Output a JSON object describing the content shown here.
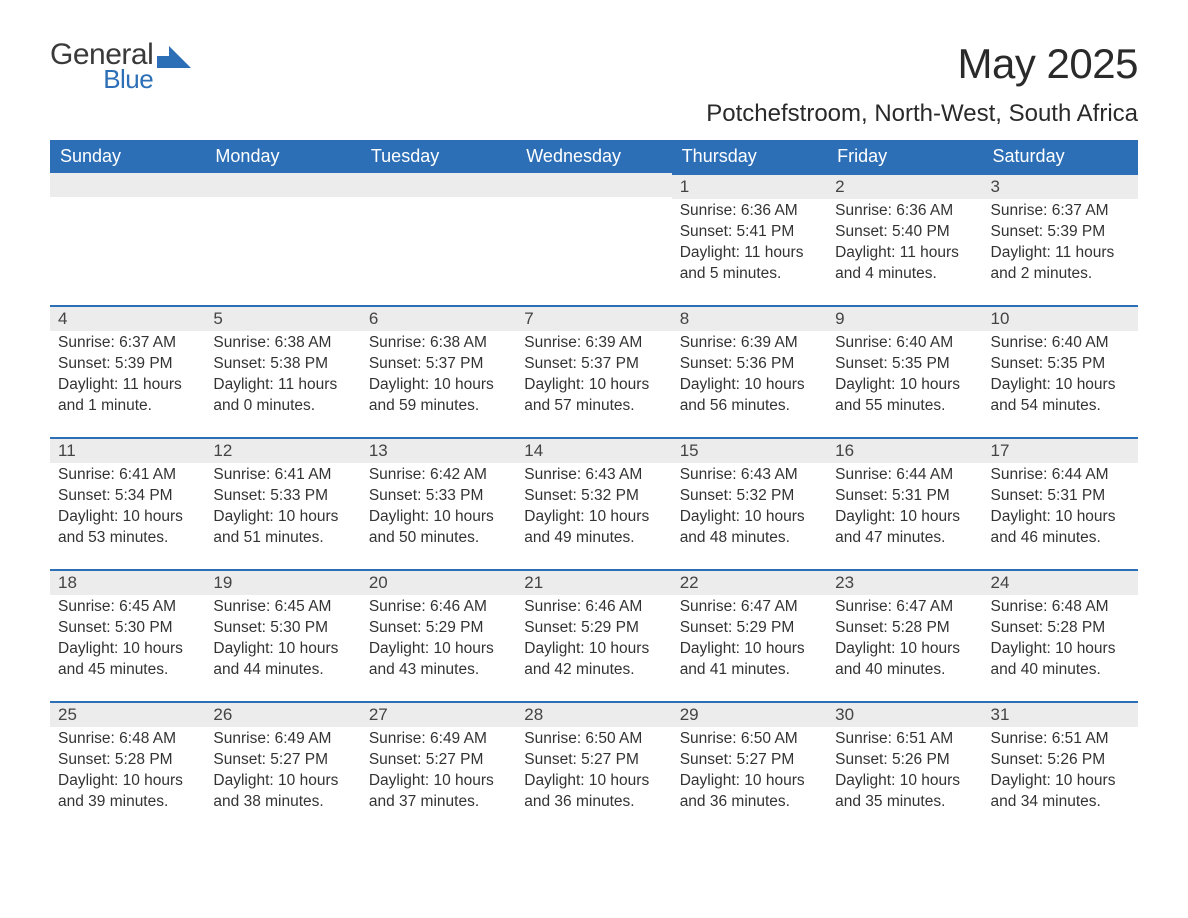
{
  "brand": {
    "word1": "General",
    "word2": "Blue",
    "icon_color": "#2d6fb7"
  },
  "header": {
    "month_title": "May 2025",
    "location": "Potchefstroom, North-West, South Africa"
  },
  "colors": {
    "header_bg": "#2d6fb7",
    "header_text": "#ffffff",
    "daybar_bg": "#ececec",
    "body_text": "#333333",
    "page_bg": "#ffffff"
  },
  "weekdays": [
    "Sunday",
    "Monday",
    "Tuesday",
    "Wednesday",
    "Thursday",
    "Friday",
    "Saturday"
  ],
  "weeks": [
    [
      null,
      null,
      null,
      null,
      {
        "num": "1",
        "sunrise": "Sunrise: 6:36 AM",
        "sunset": "Sunset: 5:41 PM",
        "daylight": "Daylight: 11 hours and 5 minutes."
      },
      {
        "num": "2",
        "sunrise": "Sunrise: 6:36 AM",
        "sunset": "Sunset: 5:40 PM",
        "daylight": "Daylight: 11 hours and 4 minutes."
      },
      {
        "num": "3",
        "sunrise": "Sunrise: 6:37 AM",
        "sunset": "Sunset: 5:39 PM",
        "daylight": "Daylight: 11 hours and 2 minutes."
      }
    ],
    [
      {
        "num": "4",
        "sunrise": "Sunrise: 6:37 AM",
        "sunset": "Sunset: 5:39 PM",
        "daylight": "Daylight: 11 hours and 1 minute."
      },
      {
        "num": "5",
        "sunrise": "Sunrise: 6:38 AM",
        "sunset": "Sunset: 5:38 PM",
        "daylight": "Daylight: 11 hours and 0 minutes."
      },
      {
        "num": "6",
        "sunrise": "Sunrise: 6:38 AM",
        "sunset": "Sunset: 5:37 PM",
        "daylight": "Daylight: 10 hours and 59 minutes."
      },
      {
        "num": "7",
        "sunrise": "Sunrise: 6:39 AM",
        "sunset": "Sunset: 5:37 PM",
        "daylight": "Daylight: 10 hours and 57 minutes."
      },
      {
        "num": "8",
        "sunrise": "Sunrise: 6:39 AM",
        "sunset": "Sunset: 5:36 PM",
        "daylight": "Daylight: 10 hours and 56 minutes."
      },
      {
        "num": "9",
        "sunrise": "Sunrise: 6:40 AM",
        "sunset": "Sunset: 5:35 PM",
        "daylight": "Daylight: 10 hours and 55 minutes."
      },
      {
        "num": "10",
        "sunrise": "Sunrise: 6:40 AM",
        "sunset": "Sunset: 5:35 PM",
        "daylight": "Daylight: 10 hours and 54 minutes."
      }
    ],
    [
      {
        "num": "11",
        "sunrise": "Sunrise: 6:41 AM",
        "sunset": "Sunset: 5:34 PM",
        "daylight": "Daylight: 10 hours and 53 minutes."
      },
      {
        "num": "12",
        "sunrise": "Sunrise: 6:41 AM",
        "sunset": "Sunset: 5:33 PM",
        "daylight": "Daylight: 10 hours and 51 minutes."
      },
      {
        "num": "13",
        "sunrise": "Sunrise: 6:42 AM",
        "sunset": "Sunset: 5:33 PM",
        "daylight": "Daylight: 10 hours and 50 minutes."
      },
      {
        "num": "14",
        "sunrise": "Sunrise: 6:43 AM",
        "sunset": "Sunset: 5:32 PM",
        "daylight": "Daylight: 10 hours and 49 minutes."
      },
      {
        "num": "15",
        "sunrise": "Sunrise: 6:43 AM",
        "sunset": "Sunset: 5:32 PM",
        "daylight": "Daylight: 10 hours and 48 minutes."
      },
      {
        "num": "16",
        "sunrise": "Sunrise: 6:44 AM",
        "sunset": "Sunset: 5:31 PM",
        "daylight": "Daylight: 10 hours and 47 minutes."
      },
      {
        "num": "17",
        "sunrise": "Sunrise: 6:44 AM",
        "sunset": "Sunset: 5:31 PM",
        "daylight": "Daylight: 10 hours and 46 minutes."
      }
    ],
    [
      {
        "num": "18",
        "sunrise": "Sunrise: 6:45 AM",
        "sunset": "Sunset: 5:30 PM",
        "daylight": "Daylight: 10 hours and 45 minutes."
      },
      {
        "num": "19",
        "sunrise": "Sunrise: 6:45 AM",
        "sunset": "Sunset: 5:30 PM",
        "daylight": "Daylight: 10 hours and 44 minutes."
      },
      {
        "num": "20",
        "sunrise": "Sunrise: 6:46 AM",
        "sunset": "Sunset: 5:29 PM",
        "daylight": "Daylight: 10 hours and 43 minutes."
      },
      {
        "num": "21",
        "sunrise": "Sunrise: 6:46 AM",
        "sunset": "Sunset: 5:29 PM",
        "daylight": "Daylight: 10 hours and 42 minutes."
      },
      {
        "num": "22",
        "sunrise": "Sunrise: 6:47 AM",
        "sunset": "Sunset: 5:29 PM",
        "daylight": "Daylight: 10 hours and 41 minutes."
      },
      {
        "num": "23",
        "sunrise": "Sunrise: 6:47 AM",
        "sunset": "Sunset: 5:28 PM",
        "daylight": "Daylight: 10 hours and 40 minutes."
      },
      {
        "num": "24",
        "sunrise": "Sunrise: 6:48 AM",
        "sunset": "Sunset: 5:28 PM",
        "daylight": "Daylight: 10 hours and 40 minutes."
      }
    ],
    [
      {
        "num": "25",
        "sunrise": "Sunrise: 6:48 AM",
        "sunset": "Sunset: 5:28 PM",
        "daylight": "Daylight: 10 hours and 39 minutes."
      },
      {
        "num": "26",
        "sunrise": "Sunrise: 6:49 AM",
        "sunset": "Sunset: 5:27 PM",
        "daylight": "Daylight: 10 hours and 38 minutes."
      },
      {
        "num": "27",
        "sunrise": "Sunrise: 6:49 AM",
        "sunset": "Sunset: 5:27 PM",
        "daylight": "Daylight: 10 hours and 37 minutes."
      },
      {
        "num": "28",
        "sunrise": "Sunrise: 6:50 AM",
        "sunset": "Sunset: 5:27 PM",
        "daylight": "Daylight: 10 hours and 36 minutes."
      },
      {
        "num": "29",
        "sunrise": "Sunrise: 6:50 AM",
        "sunset": "Sunset: 5:27 PM",
        "daylight": "Daylight: 10 hours and 36 minutes."
      },
      {
        "num": "30",
        "sunrise": "Sunrise: 6:51 AM",
        "sunset": "Sunset: 5:26 PM",
        "daylight": "Daylight: 10 hours and 35 minutes."
      },
      {
        "num": "31",
        "sunrise": "Sunrise: 6:51 AM",
        "sunset": "Sunset: 5:26 PM",
        "daylight": "Daylight: 10 hours and 34 minutes."
      }
    ]
  ]
}
